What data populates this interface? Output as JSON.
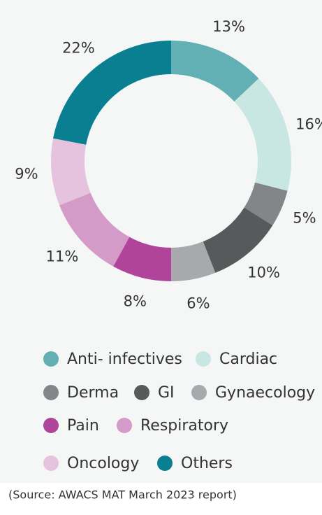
{
  "chart_data": {
    "type": "donut",
    "categories": [
      "Anti- infectives",
      "Cardiac",
      "Derma",
      "GI",
      "Gynaecology",
      "Pain",
      "Respiratory",
      "Oncology",
      "Others"
    ],
    "values": [
      13,
      16,
      5,
      10,
      6,
      8,
      11,
      9,
      22
    ],
    "value_labels": [
      "13%",
      "16%",
      "5%",
      "10%",
      "6%",
      "8%",
      "11%",
      "9%",
      "22%"
    ],
    "colors": [
      "#62b0b4",
      "#c8e6e2",
      "#838588",
      "#58595b",
      "#a7a9ac",
      "#b0449a",
      "#d49bc8",
      "#e5c2dd",
      "#0a7f91"
    ],
    "source": "(Source: AWACS MAT March 2023 report)"
  }
}
